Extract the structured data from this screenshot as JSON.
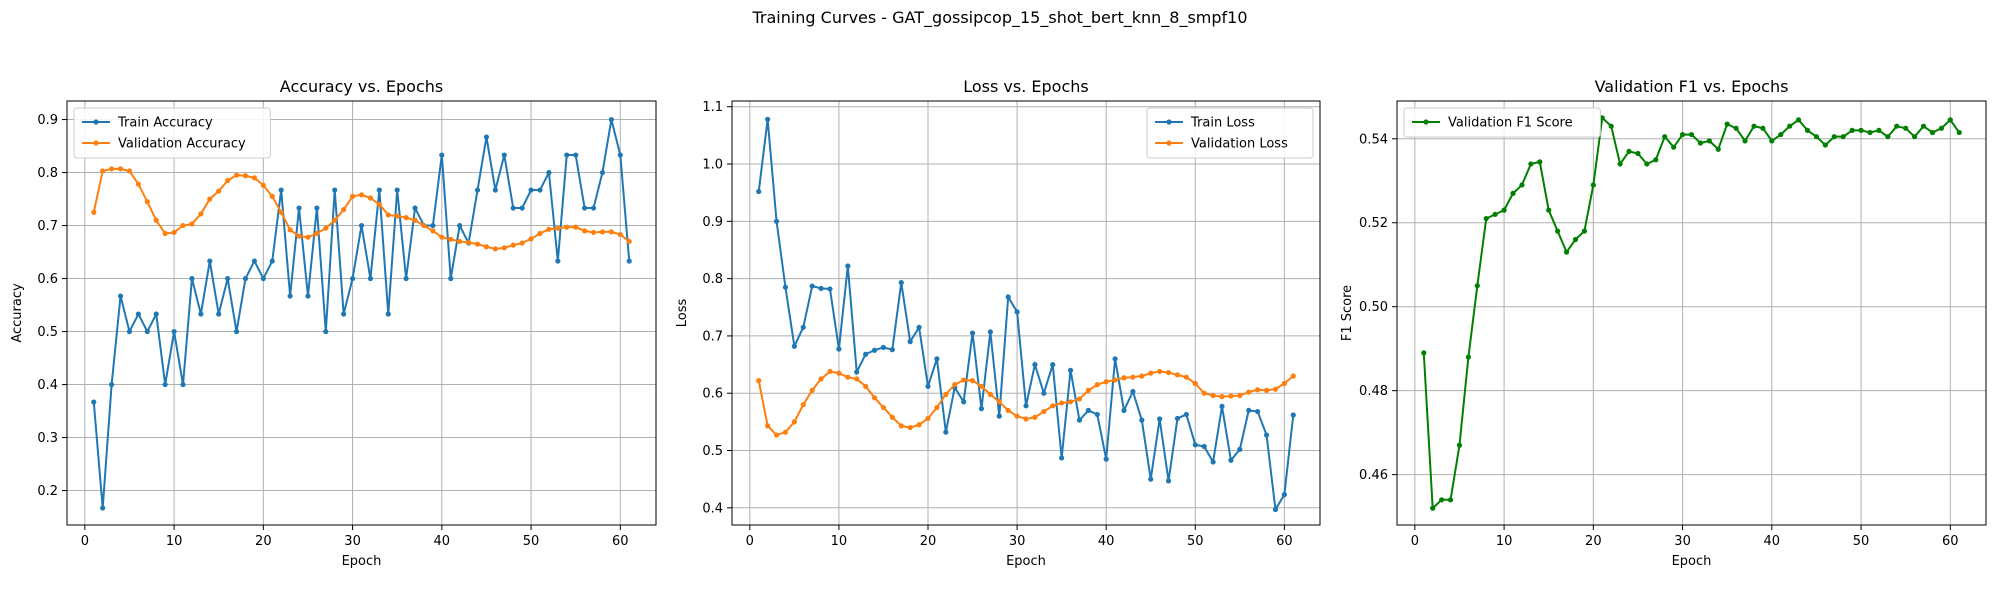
{
  "suptitle": "Training Curves - GAT_gossipcop_15_shot_bert_knn_8_smpf10",
  "chart_data": [
    {
      "type": "line",
      "title": "Accuracy vs. Epochs",
      "xlabel": "Epoch",
      "ylabel": "Accuracy",
      "xlim": [
        -2,
        64
      ],
      "ylim": [
        0.135,
        0.935
      ],
      "xticks": [
        0,
        10,
        20,
        30,
        40,
        50,
        60
      ],
      "yticks": [
        0.2,
        0.3,
        0.4,
        0.5,
        0.6,
        0.7,
        0.8,
        0.9
      ],
      "grid": true,
      "legend": "upper left",
      "series": [
        {
          "name": "Train Accuracy",
          "color": "#1f77b4",
          "x": [
            1,
            2,
            3,
            4,
            5,
            6,
            7,
            8,
            9,
            10,
            11,
            12,
            13,
            14,
            15,
            16,
            17,
            18,
            19,
            20,
            21,
            22,
            23,
            24,
            25,
            26,
            27,
            28,
            29,
            30,
            31,
            32,
            33,
            34,
            35,
            36,
            37,
            38,
            39,
            40,
            41,
            42,
            43,
            44,
            45,
            46,
            47,
            48,
            49,
            50,
            51,
            52,
            53,
            54,
            55,
            56,
            57,
            58,
            59,
            60,
            61
          ],
          "y": [
            0.367,
            0.167,
            0.4,
            0.567,
            0.5,
            0.533,
            0.5,
            0.533,
            0.4,
            0.5,
            0.4,
            0.6,
            0.533,
            0.633,
            0.533,
            0.6,
            0.5,
            0.6,
            0.633,
            0.6,
            0.633,
            0.767,
            0.567,
            0.733,
            0.567,
            0.733,
            0.5,
            0.767,
            0.533,
            0.6,
            0.7,
            0.6,
            0.767,
            0.533,
            0.767,
            0.6,
            0.733,
            0.7,
            0.7,
            0.833,
            0.6,
            0.7,
            0.667,
            0.767,
            0.867,
            0.767,
            0.833,
            0.733,
            0.733,
            0.767,
            0.767,
            0.8,
            0.633,
            0.833,
            0.833,
            0.733,
            0.733,
            0.8,
            0.9,
            0.833,
            0.633
          ]
        },
        {
          "name": "Validation Accuracy",
          "color": "#ff7f0e",
          "x": [
            1,
            2,
            3,
            4,
            5,
            6,
            7,
            8,
            9,
            10,
            11,
            12,
            13,
            14,
            15,
            16,
            17,
            18,
            19,
            20,
            21,
            22,
            23,
            24,
            25,
            26,
            27,
            28,
            29,
            30,
            31,
            32,
            33,
            34,
            35,
            36,
            37,
            38,
            39,
            40,
            41,
            42,
            43,
            44,
            45,
            46,
            47,
            48,
            49,
            50,
            51,
            52,
            53,
            54,
            55,
            56,
            57,
            58,
            59,
            60,
            61
          ],
          "y": [
            0.725,
            0.803,
            0.807,
            0.807,
            0.803,
            0.778,
            0.745,
            0.71,
            0.685,
            0.687,
            0.7,
            0.703,
            0.722,
            0.75,
            0.765,
            0.785,
            0.795,
            0.794,
            0.79,
            0.776,
            0.755,
            0.725,
            0.692,
            0.68,
            0.678,
            0.685,
            0.695,
            0.71,
            0.73,
            0.755,
            0.758,
            0.752,
            0.74,
            0.72,
            0.718,
            0.715,
            0.71,
            0.7,
            0.69,
            0.678,
            0.674,
            0.67,
            0.668,
            0.665,
            0.66,
            0.656,
            0.658,
            0.663,
            0.667,
            0.675,
            0.685,
            0.693,
            0.695,
            0.697,
            0.697,
            0.69,
            0.687,
            0.688,
            0.688,
            0.683,
            0.67
          ]
        }
      ]
    },
    {
      "type": "line",
      "title": "Loss vs. Epochs",
      "xlabel": "Epoch",
      "ylabel": "Loss",
      "xlim": [
        -2,
        64
      ],
      "ylim": [
        0.37,
        1.11
      ],
      "xticks": [
        0,
        10,
        20,
        30,
        40,
        50,
        60
      ],
      "yticks": [
        0.4,
        0.5,
        0.6,
        0.7,
        0.8,
        0.9,
        1.0,
        1.1
      ],
      "grid": true,
      "legend": "upper right",
      "series": [
        {
          "name": "Train Loss",
          "color": "#1f77b4",
          "x": [
            1,
            2,
            3,
            4,
            5,
            6,
            7,
            8,
            9,
            10,
            11,
            12,
            13,
            14,
            15,
            16,
            17,
            18,
            19,
            20,
            21,
            22,
            23,
            24,
            25,
            26,
            27,
            28,
            29,
            30,
            31,
            32,
            33,
            34,
            35,
            36,
            37,
            38,
            39,
            40,
            41,
            42,
            43,
            44,
            45,
            46,
            47,
            48,
            49,
            50,
            51,
            52,
            53,
            54,
            55,
            56,
            57,
            58,
            59,
            60,
            61
          ],
          "y": [
            0.952,
            1.078,
            0.9,
            0.785,
            0.682,
            0.715,
            0.787,
            0.783,
            0.782,
            0.677,
            0.822,
            0.637,
            0.668,
            0.675,
            0.68,
            0.676,
            0.793,
            0.69,
            0.715,
            0.612,
            0.66,
            0.532,
            0.61,
            0.585,
            0.705,
            0.573,
            0.707,
            0.56,
            0.768,
            0.742,
            0.578,
            0.65,
            0.6,
            0.65,
            0.487,
            0.64,
            0.553,
            0.57,
            0.563,
            0.485,
            0.66,
            0.57,
            0.603,
            0.553,
            0.45,
            0.555,
            0.447,
            0.556,
            0.563,
            0.51,
            0.507,
            0.48,
            0.577,
            0.483,
            0.502,
            0.57,
            0.568,
            0.527,
            0.397,
            0.423,
            0.562
          ]
        },
        {
          "name": "Validation Loss",
          "color": "#ff7f0e",
          "x": [
            1,
            2,
            3,
            4,
            5,
            6,
            7,
            8,
            9,
            10,
            11,
            12,
            13,
            14,
            15,
            16,
            17,
            18,
            19,
            20,
            21,
            22,
            23,
            24,
            25,
            26,
            27,
            28,
            29,
            30,
            31,
            32,
            33,
            34,
            35,
            36,
            37,
            38,
            39,
            40,
            41,
            42,
            43,
            44,
            45,
            46,
            47,
            48,
            49,
            50,
            51,
            52,
            53,
            54,
            55,
            56,
            57,
            58,
            59,
            60,
            61
          ],
          "y": [
            0.622,
            0.543,
            0.527,
            0.532,
            0.55,
            0.58,
            0.605,
            0.625,
            0.638,
            0.635,
            0.628,
            0.625,
            0.612,
            0.592,
            0.575,
            0.558,
            0.543,
            0.54,
            0.545,
            0.556,
            0.575,
            0.598,
            0.615,
            0.623,
            0.622,
            0.612,
            0.598,
            0.585,
            0.57,
            0.56,
            0.555,
            0.558,
            0.568,
            0.578,
            0.583,
            0.585,
            0.59,
            0.605,
            0.615,
            0.62,
            0.623,
            0.627,
            0.628,
            0.63,
            0.635,
            0.638,
            0.636,
            0.632,
            0.628,
            0.617,
            0.6,
            0.596,
            0.594,
            0.595,
            0.596,
            0.602,
            0.606,
            0.605,
            0.607,
            0.617,
            0.63
          ]
        }
      ]
    },
    {
      "type": "line",
      "title": "Validation F1 vs. Epochs",
      "xlabel": "Epoch",
      "ylabel": "F1 Score",
      "xlim": [
        -2,
        64
      ],
      "ylim": [
        0.448,
        0.549
      ],
      "xticks": [
        0,
        10,
        20,
        30,
        40,
        50,
        60
      ],
      "yticks": [
        0.46,
        0.48,
        0.5,
        0.52,
        0.54
      ],
      "grid": true,
      "legend": "upper left",
      "series": [
        {
          "name": "Validation F1 Score",
          "color": "#008000",
          "x": [
            1,
            2,
            3,
            4,
            5,
            6,
            7,
            8,
            9,
            10,
            11,
            12,
            13,
            14,
            15,
            16,
            17,
            18,
            19,
            20,
            21,
            22,
            23,
            24,
            25,
            26,
            27,
            28,
            29,
            30,
            31,
            32,
            33,
            34,
            35,
            36,
            37,
            38,
            39,
            40,
            41,
            42,
            43,
            44,
            45,
            46,
            47,
            48,
            49,
            50,
            51,
            52,
            53,
            54,
            55,
            56,
            57,
            58,
            59,
            60,
            61
          ],
          "y": [
            0.489,
            0.452,
            0.454,
            0.454,
            0.467,
            0.488,
            0.505,
            0.521,
            0.522,
            0.523,
            0.527,
            0.529,
            0.534,
            0.5345,
            0.523,
            0.518,
            0.513,
            0.516,
            0.518,
            0.529,
            0.545,
            0.543,
            0.534,
            0.537,
            0.5365,
            0.534,
            0.535,
            0.5405,
            0.538,
            0.541,
            0.541,
            0.539,
            0.5395,
            0.5375,
            0.5435,
            0.5425,
            0.5395,
            0.543,
            0.5425,
            0.5395,
            0.541,
            0.543,
            0.5445,
            0.542,
            0.5405,
            0.5385,
            0.5405,
            0.5405,
            0.542,
            0.542,
            0.5415,
            0.542,
            0.5405,
            0.543,
            0.5425,
            0.5405,
            0.543,
            0.5415,
            0.5425,
            0.5445,
            0.5415
          ]
        }
      ]
    }
  ]
}
